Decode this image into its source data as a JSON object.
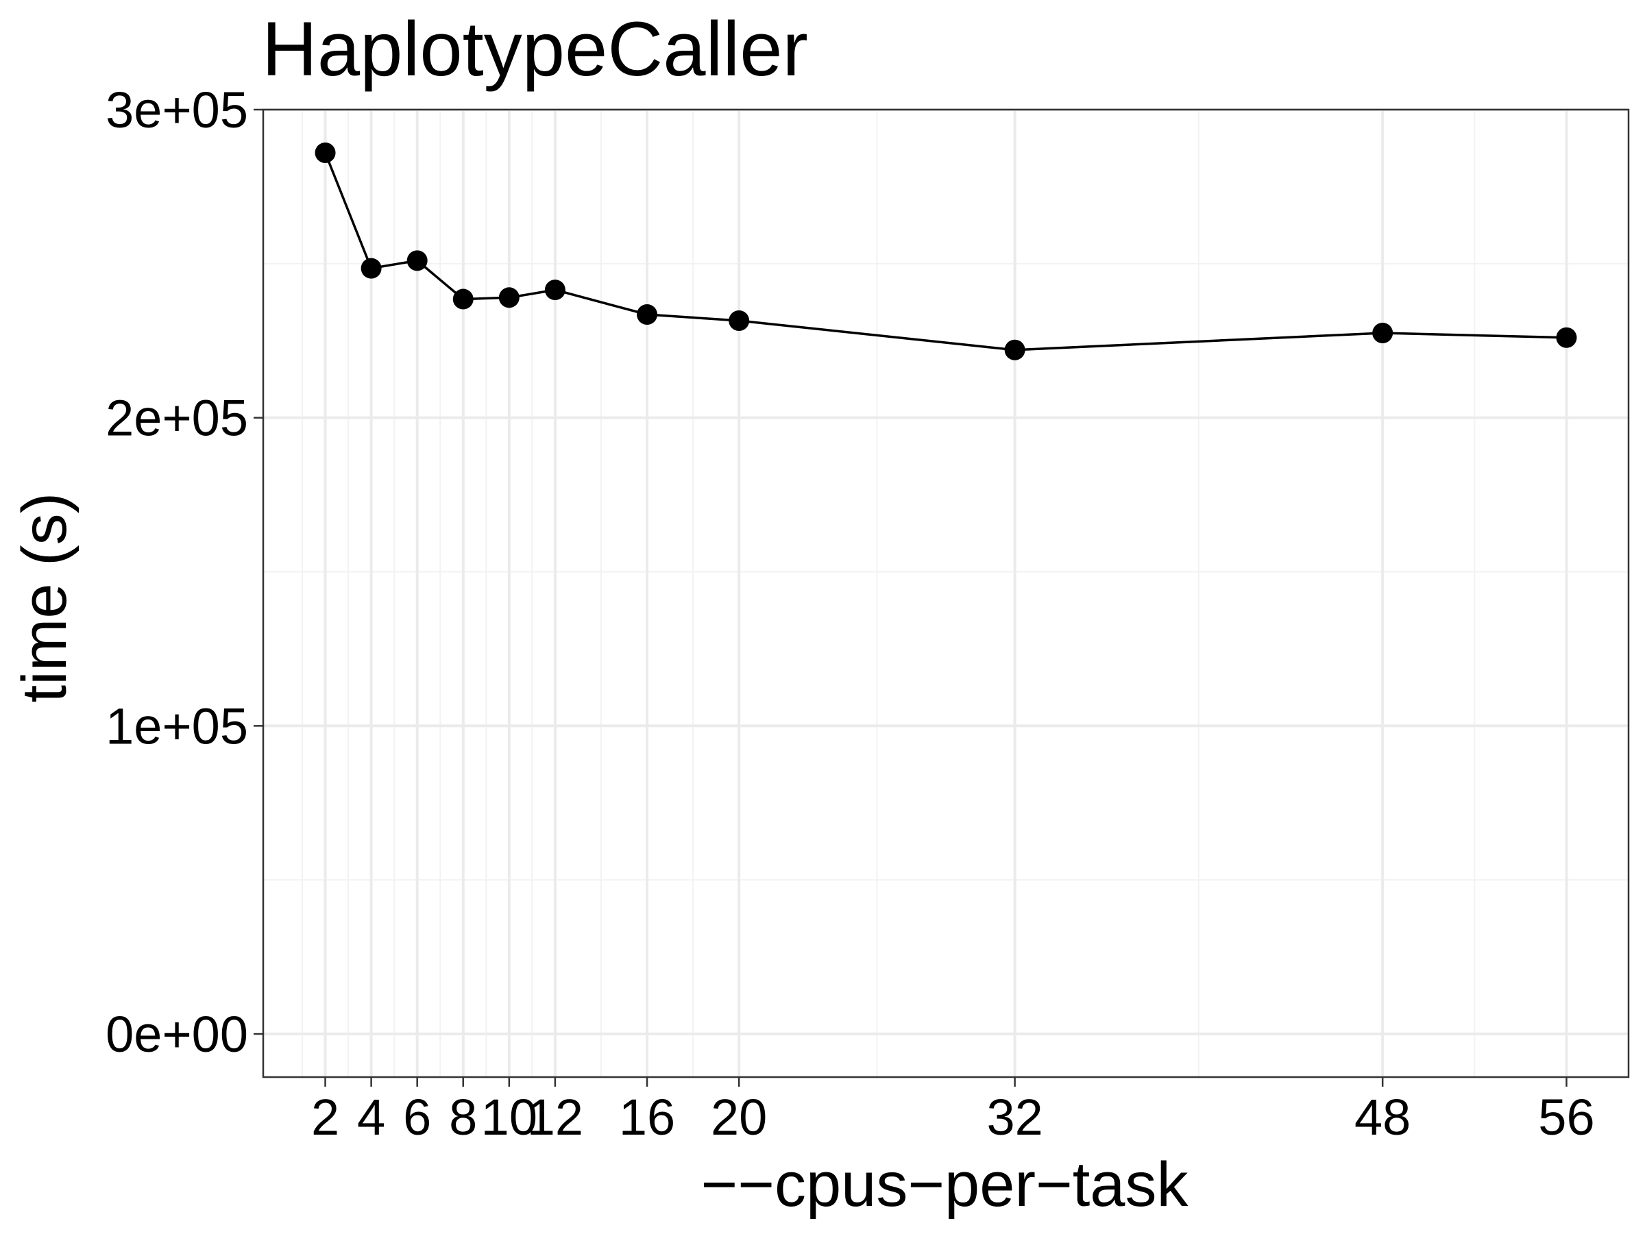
{
  "chart_data": {
    "type": "line",
    "title": "HaplotypeCaller",
    "xlabel": "−−cpus−per−task",
    "ylabel": "time (s)",
    "x": [
      2,
      4,
      6,
      8,
      10,
      12,
      16,
      20,
      32,
      48,
      56
    ],
    "series": [
      {
        "values": [
          286000,
          248500,
          251000,
          238500,
          239000,
          241500,
          233500,
          231500,
          222000,
          227500,
          226000
        ]
      }
    ],
    "x_ticks": [
      2,
      4,
      6,
      8,
      10,
      12,
      16,
      20,
      32,
      48,
      56
    ],
    "x_tick_labels": [
      "2",
      "4",
      "6",
      "8",
      "10",
      "12",
      "16",
      "20",
      "32",
      "48",
      "56"
    ],
    "y_ticks": [
      0,
      100000,
      200000,
      300000
    ],
    "y_tick_labels": [
      "0e+00",
      "1e+05",
      "2e+05",
      "3e+05"
    ],
    "xlim": [
      -0.7,
      58.7
    ],
    "ylim": [
      -14000,
      300000
    ],
    "grid": true,
    "marker_color": "#000000",
    "line_color": "#000000"
  }
}
